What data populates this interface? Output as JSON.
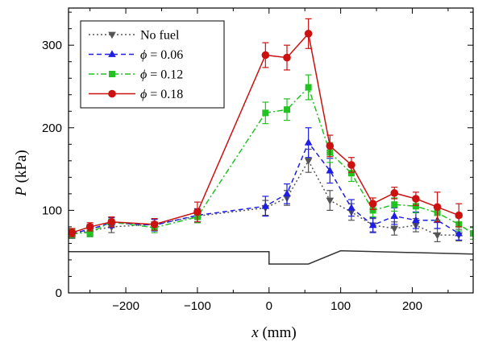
{
  "chart_data": {
    "type": "line",
    "x_label": {
      "var": "x",
      "unit": " (mm)"
    },
    "y_label": {
      "var": "P",
      "unit": " (kPa)"
    },
    "xlim": [
      -280,
      285
    ],
    "ylim": [
      0,
      345
    ],
    "x_ticks": [
      -200,
      -100,
      0,
      100,
      200
    ],
    "x_tick_labels": [
      "−200",
      "−100",
      "0",
      "100",
      "200"
    ],
    "y_ticks": [
      0,
      100,
      200,
      300
    ],
    "y_tick_labels": [
      "0",
      "100",
      "200",
      "300"
    ],
    "grid": false,
    "legend_position": "top-left",
    "legend_phi_symbol": "ϕ",
    "series": [
      {
        "name": "No fuel",
        "legend_label": {
          "plain": "No fuel"
        },
        "color": "#555555",
        "marker": "triangle-down",
        "line_style": "dotted",
        "x": [
          -275,
          -250,
          -220,
          -160,
          -100,
          -5,
          25,
          55,
          85,
          115,
          145,
          175,
          205,
          235,
          265
        ],
        "y": [
          71,
          75,
          80,
          83,
          93,
          103,
          115,
          160,
          112,
          98,
          82,
          78,
          82,
          70,
          70
        ],
        "err": [
          5,
          6,
          7,
          7,
          8,
          9,
          9,
          14,
          12,
          10,
          8,
          8,
          8,
          8,
          7
        ]
      },
      {
        "name": "ϕ = 0.06",
        "legend_label": {
          "value": " = 0.06"
        },
        "color": "#1e1ee6",
        "marker": "triangle-up",
        "line_style": "dashed",
        "x": [
          -275,
          -250,
          -220,
          -160,
          -100,
          -5,
          25,
          55,
          85,
          115,
          145,
          175,
          205,
          235,
          265
        ],
        "y": [
          72,
          77,
          85,
          82,
          94,
          105,
          120,
          182,
          148,
          103,
          82,
          93,
          88,
          88,
          72
        ],
        "err": [
          5,
          6,
          6,
          7,
          8,
          12,
          12,
          18,
          15,
          10,
          9,
          10,
          10,
          10,
          8
        ]
      },
      {
        "name": "ϕ = 0.12",
        "legend_label": {
          "value": " = 0.12"
        },
        "color": "#22c222",
        "marker": "square",
        "line_style": "dashdot",
        "x": [
          -275,
          -250,
          -220,
          -160,
          -100,
          -5,
          25,
          55,
          85,
          115,
          145,
          175,
          205,
          235,
          265,
          285
        ],
        "y": [
          72,
          73,
          86,
          79,
          92,
          218,
          222,
          249,
          170,
          145,
          100,
          107,
          105,
          97,
          83,
          72
        ],
        "err": [
          5,
          5,
          6,
          6,
          7,
          13,
          13,
          15,
          12,
          10,
          8,
          8,
          8,
          9,
          8,
          7
        ]
      },
      {
        "name": "ϕ = 0.18",
        "legend_label": {
          "value": " = 0.18"
        },
        "color": "#cc1111",
        "marker": "circle",
        "line_style": "solid",
        "x": [
          -275,
          -250,
          -220,
          -160,
          -100,
          -5,
          25,
          55,
          85,
          115,
          145,
          175,
          205,
          235,
          265
        ],
        "y": [
          73,
          80,
          86,
          83,
          98,
          288,
          285,
          314,
          178,
          155,
          108,
          121,
          114,
          104,
          94
        ],
        "err": [
          5,
          5,
          6,
          7,
          12,
          15,
          15,
          18,
          13,
          9,
          7,
          7,
          8,
          18,
          14
        ]
      }
    ],
    "geometry_outline": {
      "color": "#333333",
      "x": [
        -285,
        0,
        0,
        55,
        100,
        285
      ],
      "y": [
        50,
        50,
        35,
        35,
        51,
        47
      ]
    }
  }
}
